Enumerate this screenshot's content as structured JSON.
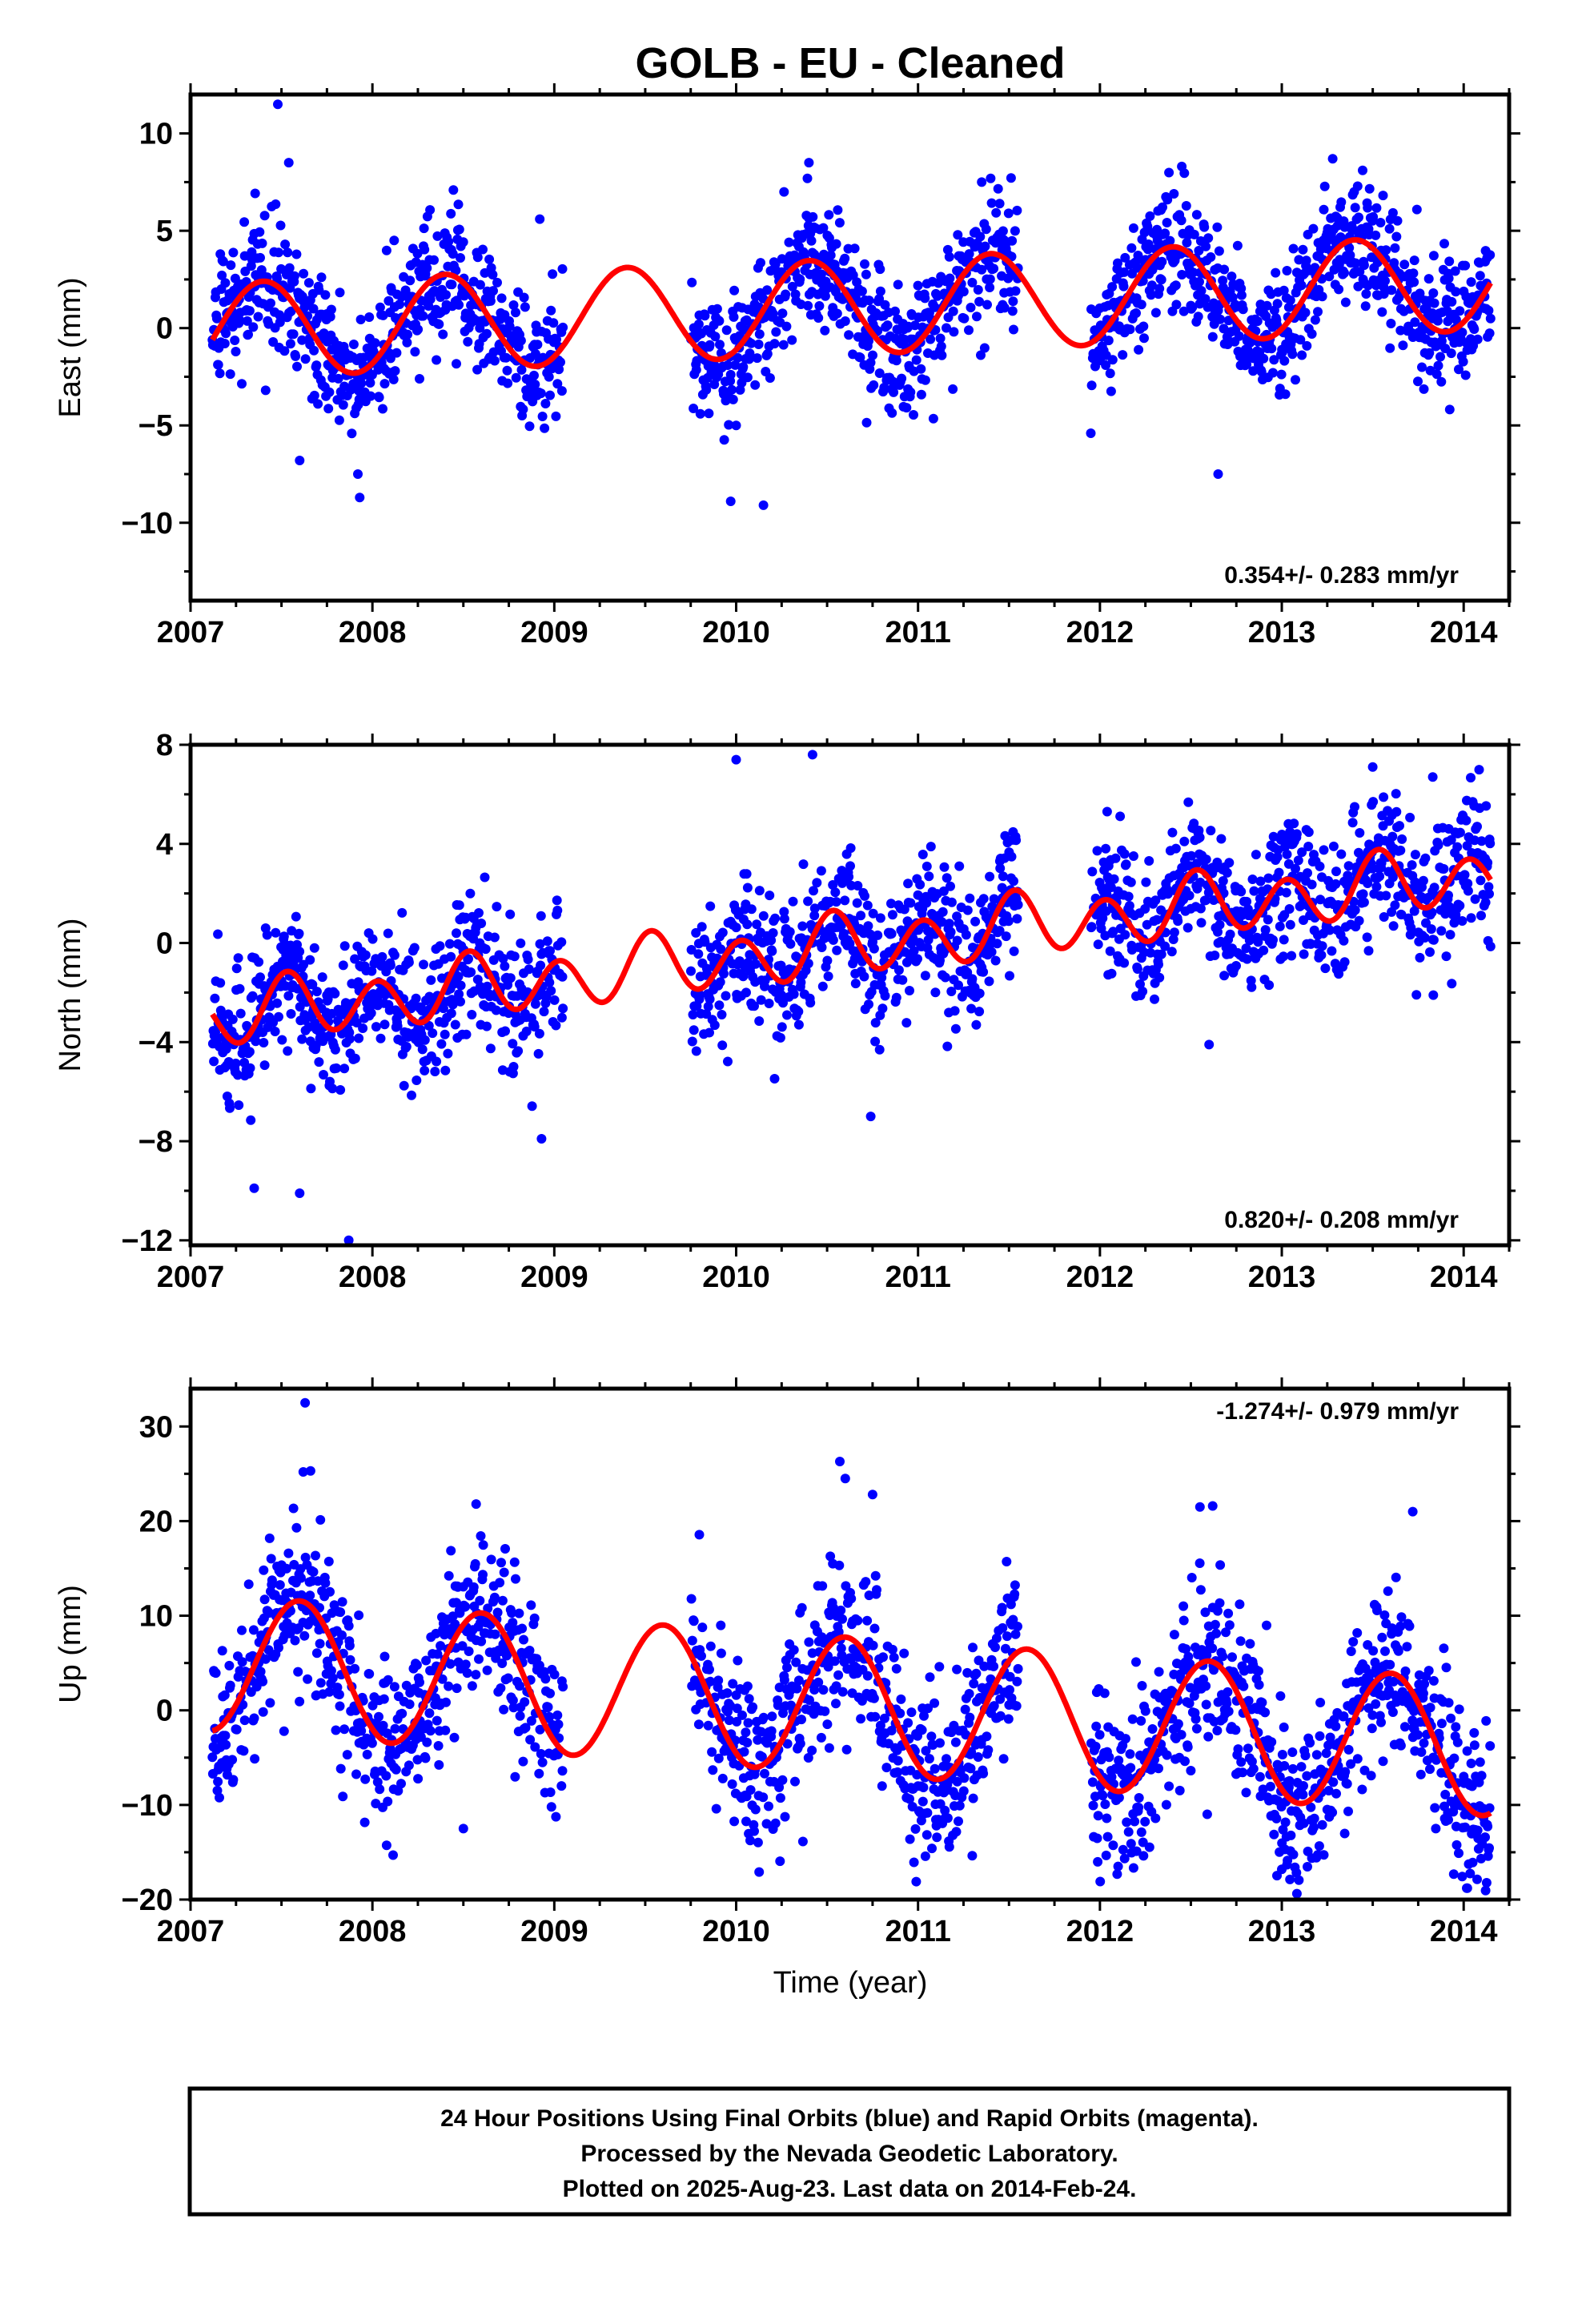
{
  "colors": {
    "observations": "#0000ff",
    "model": "#ff0000",
    "frame": "#000000"
  },
  "chart_data": [
    {
      "type": "scatter",
      "title": "GOLB  - EU - Cleaned",
      "ylabel": "East (mm)",
      "xlim": [
        2007.0,
        2014.25
      ],
      "ylim": [
        -14,
        12
      ],
      "yticks": [
        -10,
        -5,
        0,
        5,
        10
      ],
      "xticks": [
        2007,
        2008,
        2009,
        2010,
        2011,
        2012,
        2013,
        2014
      ],
      "rate_label": "0.354+/- 0.283 mm/yr",
      "rate_position": "bottom-right",
      "series": [
        {
          "marker": "dots",
          "color": "#0000ff",
          "model": {
            "t0": 2007.1,
            "offset": -0.15,
            "rate": 0.354,
            "amp1": 2.45,
            "phase_peak": 2007.4,
            "amp2": 0.0
          },
          "noise_sd": 1.6,
          "gaps": [
            [
              2009.05,
              2009.75
            ],
            [
              2011.55,
              2011.95
            ]
          ],
          "outliers": [
            [
              2007.48,
              11.5
            ],
            [
              2007.54,
              8.5
            ],
            [
              2007.93,
              -8.7
            ],
            [
              2007.92,
              -7.5
            ],
            [
              2007.6,
              -6.8
            ],
            [
              2008.92,
              5.6
            ],
            [
              2009.97,
              -8.9
            ],
            [
              2010.15,
              -9.1
            ],
            [
              2010.0,
              -5.0
            ],
            [
              2010.4,
              8.5
            ],
            [
              2011.35,
              7.5
            ],
            [
              2011.95,
              -5.4
            ],
            [
              2012.45,
              8.3
            ],
            [
              2012.65,
              -7.5
            ],
            [
              2013.28,
              8.7
            ]
          ]
        },
        {
          "name": "fit",
          "type": "line",
          "color": "#ff0000"
        }
      ]
    },
    {
      "type": "scatter",
      "ylabel": "North (mm)",
      "xlim": [
        2007.0,
        2014.25
      ],
      "ylim": [
        -12.2,
        8
      ],
      "yticks": [
        -12,
        -8,
        -4,
        0,
        4,
        8
      ],
      "xticks": [
        2007,
        2008,
        2009,
        2010,
        2011,
        2012,
        2013,
        2014
      ],
      "rate_label": "0.820+/- 0.208 mm/yr",
      "rate_position": "bottom-right",
      "series": [
        {
          "marker": "dots",
          "color": "#0000ff",
          "model": {
            "t0": 2007.1,
            "offset": -3.0,
            "rate": 0.82,
            "amp1": 0.4,
            "phase_peak": 2007.55,
            "amp2": 1.1,
            "phase2_peak": 2007.53
          },
          "noise_sd": 1.4,
          "gaps": [
            [
              2009.05,
              2009.75
            ],
            [
              2011.55,
              2011.95
            ]
          ],
          "outliers": [
            [
              2007.35,
              -9.9
            ],
            [
              2007.6,
              -10.1
            ],
            [
              2007.87,
              -12.0
            ],
            [
              2008.93,
              -7.9
            ],
            [
              2010.0,
              7.4
            ],
            [
              2010.42,
              7.6
            ],
            [
              2010.74,
              -7.0
            ],
            [
              2011.45,
              3.3
            ],
            [
              2013.5,
              7.1
            ],
            [
              2013.83,
              6.7
            ],
            [
              2012.6,
              -4.1
            ]
          ]
        },
        {
          "name": "fit",
          "type": "line",
          "color": "#ff0000"
        }
      ]
    },
    {
      "type": "scatter",
      "ylabel": "Up (mm)",
      "xlabel": "Time (year)",
      "xlim": [
        2007.0,
        2014.25
      ],
      "ylim": [
        -20,
        34
      ],
      "yticks": [
        -20,
        -10,
        0,
        10,
        20,
        30
      ],
      "xticks": [
        2007,
        2008,
        2009,
        2010,
        2011,
        2012,
        2013,
        2014
      ],
      "rate_label": "-1.274+/- 0.979 mm/yr",
      "rate_position": "top-right",
      "series": [
        {
          "marker": "dots",
          "color": "#0000ff",
          "model": {
            "t0": 2007.1,
            "offset": 5.0,
            "rate": -1.274,
            "amp1": 7.2,
            "phase_peak": 2007.6,
            "amp2": 0.0
          },
          "noise_sd": 4.5,
          "gaps": [
            [
              2009.05,
              2009.75
            ],
            [
              2011.55,
              2011.95
            ]
          ],
          "outliers": [
            [
              2007.63,
              32.5
            ],
            [
              2007.62,
              25.2
            ],
            [
              2007.66,
              25.3
            ],
            [
              2008.57,
              21.8
            ],
            [
              2008.5,
              -12.5
            ],
            [
              2010.57,
              26.3
            ],
            [
              2010.6,
              24.5
            ],
            [
              2010.75,
              22.8
            ],
            [
              2010.99,
              -18.1
            ],
            [
              2012.55,
              21.5
            ],
            [
              2012.62,
              21.6
            ],
            [
              2013.72,
              21.0
            ],
            [
              2014.02,
              -18.8
            ],
            [
              2012.1,
              -16.5
            ],
            [
              2013.0,
              -16.8
            ]
          ]
        },
        {
          "name": "fit",
          "type": "line",
          "color": "#ff0000"
        }
      ]
    }
  ],
  "footer": {
    "line1": "24 Hour Positions Using Final Orbits (blue) and Rapid Orbits (magenta).",
    "line2": "Processed by the Nevada Geodetic Laboratory.",
    "line3": "Plotted on 2025-Aug-23. Last data on 2014-Feb-24."
  }
}
